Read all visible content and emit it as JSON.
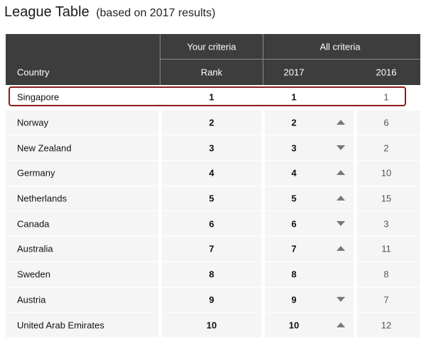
{
  "title": "League Table",
  "subtitle": "(based on 2017 results)",
  "header": {
    "group_your": "Your criteria",
    "group_all": "All criteria",
    "col_country": "Country",
    "col_rank": "Rank",
    "col_2017": "2017",
    "col_2016": "2016"
  },
  "colors": {
    "header_bg": "#3d3d3d",
    "highlight_border": "#8b1a1a",
    "trend_icon": "#777777"
  },
  "rows": [
    {
      "country": "Singapore",
      "rank": "1",
      "y2017": "1",
      "trend": "none",
      "y2016": "1"
    },
    {
      "country": "Norway",
      "rank": "2",
      "y2017": "2",
      "trend": "up",
      "y2016": "6"
    },
    {
      "country": "New Zealand",
      "rank": "3",
      "y2017": "3",
      "trend": "down",
      "y2016": "2"
    },
    {
      "country": "Germany",
      "rank": "4",
      "y2017": "4",
      "trend": "up",
      "y2016": "10"
    },
    {
      "country": "Netherlands",
      "rank": "5",
      "y2017": "5",
      "trend": "up",
      "y2016": "15"
    },
    {
      "country": "Canada",
      "rank": "6",
      "y2017": "6",
      "trend": "down",
      "y2016": "3"
    },
    {
      "country": "Australia",
      "rank": "7",
      "y2017": "7",
      "trend": "up",
      "y2016": "11"
    },
    {
      "country": "Sweden",
      "rank": "8",
      "y2017": "8",
      "trend": "none",
      "y2016": "8"
    },
    {
      "country": "Austria",
      "rank": "9",
      "y2017": "9",
      "trend": "down",
      "y2016": "7"
    },
    {
      "country": "United Arab Emirates",
      "rank": "10",
      "y2017": "10",
      "trend": "up",
      "y2016": "12"
    }
  ]
}
